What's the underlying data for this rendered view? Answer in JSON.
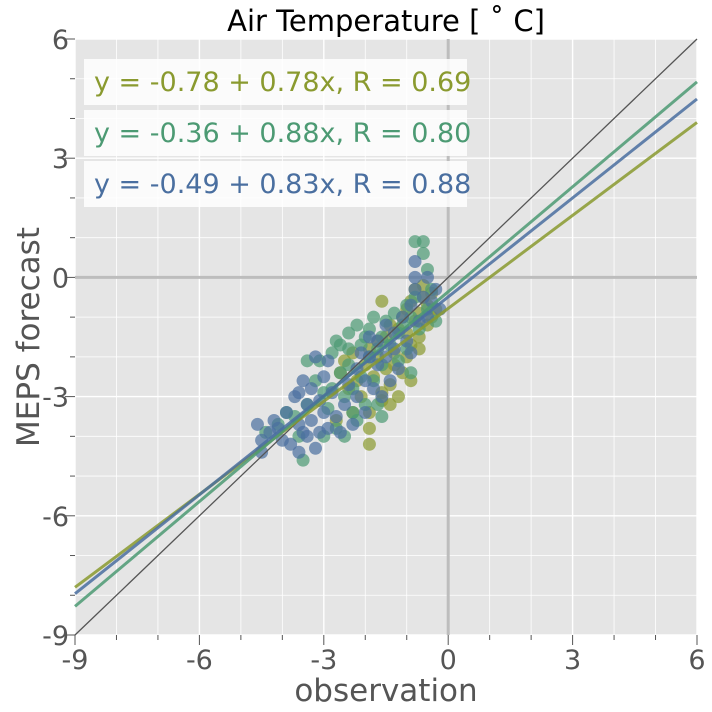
{
  "chart_data": {
    "type": "scatter",
    "title": "Air Temperature [$^\\circ$C]",
    "title_display": "Air Temperature [ ˚ C]",
    "xlabel": "observation",
    "ylabel": "MEPS forecast",
    "xlim": [
      -9,
      6
    ],
    "ylim": [
      -9,
      6
    ],
    "x_ticks": [
      -9,
      -6,
      -3,
      0,
      3,
      6
    ],
    "y_ticks": [
      -9,
      -6,
      -3,
      0,
      3,
      6
    ],
    "x_tick_labels": [
      "-9",
      "-6",
      "-3",
      "0",
      "3",
      "6"
    ],
    "y_tick_labels": [
      "-9",
      "-6",
      "-3",
      "0",
      "3",
      "6"
    ],
    "minor_tick_step": 1,
    "grid": true,
    "background": "#e5e5e5",
    "identity_line_color": "#555555",
    "zero_line_color": "#bdbdbd",
    "legend_position": "top-left",
    "series": [
      {
        "color": "#8a9a2f",
        "fit_label": "y = -0.78 + 0.78x, R = 0.69",
        "intercept": -0.78,
        "slope": 0.78,
        "points": [
          [
            -2.6,
            -2.4
          ],
          [
            -2.5,
            -2.1
          ],
          [
            -2.4,
            -2.8
          ],
          [
            -2.3,
            -1.9
          ],
          [
            -2.2,
            -2.6
          ],
          [
            -2.1,
            -3.0
          ],
          [
            -2.0,
            -2.2
          ],
          [
            -1.9,
            -1.8
          ],
          [
            -1.9,
            -3.4
          ],
          [
            -1.8,
            -2.5
          ],
          [
            -1.7,
            -2.0
          ],
          [
            -1.7,
            -1.6
          ],
          [
            -1.6,
            -2.9
          ],
          [
            -1.6,
            -3.1
          ],
          [
            -1.5,
            -1.5
          ],
          [
            -1.5,
            -2.3
          ],
          [
            -1.4,
            -1.2
          ],
          [
            -1.4,
            -2.7
          ],
          [
            -1.3,
            -1.9
          ],
          [
            -1.3,
            -2.2
          ],
          [
            -1.2,
            -1.3
          ],
          [
            -1.2,
            -3.0
          ],
          [
            -1.1,
            -1.0
          ],
          [
            -1.1,
            -2.4
          ],
          [
            -1.0,
            -1.4
          ],
          [
            -1.0,
            -0.8
          ],
          [
            -0.9,
            -0.6
          ],
          [
            -0.9,
            -1.7
          ],
          [
            -0.9,
            -2.6
          ],
          [
            -0.8,
            -0.3
          ],
          [
            -0.8,
            -1.1
          ],
          [
            -0.7,
            -0.9
          ],
          [
            -0.7,
            -1.5
          ],
          [
            -0.6,
            -0.5
          ],
          [
            -0.6,
            -0.2
          ],
          [
            -0.5,
            -1.2
          ],
          [
            -0.5,
            -0.7
          ],
          [
            -0.4,
            -0.4
          ],
          [
            -0.4,
            -1.0
          ],
          [
            -1.9,
            -4.2
          ],
          [
            -1.9,
            -3.8
          ],
          [
            -1.6,
            -0.6
          ],
          [
            -0.3,
            -0.8
          ],
          [
            -2.3,
            -3.4
          ],
          [
            -1.4,
            -3.2
          ],
          [
            -0.7,
            -1.8
          ],
          [
            -1.0,
            -2.0
          ],
          [
            -2.7,
            -3.6
          ]
        ]
      },
      {
        "color": "#4c9a73",
        "fit_label": "y = -0.36 + 0.88x, R = 0.80",
        "intercept": -0.36,
        "slope": 0.88,
        "points": [
          [
            -4.4,
            -3.9
          ],
          [
            -4.1,
            -3.7
          ],
          [
            -3.9,
            -3.4
          ],
          [
            -3.7,
            -3.5
          ],
          [
            -3.6,
            -4.0
          ],
          [
            -3.5,
            -4.6
          ],
          [
            -3.4,
            -3.2
          ],
          [
            -3.2,
            -2.6
          ],
          [
            -3.1,
            -2.1
          ],
          [
            -3.0,
            -4.0
          ],
          [
            -2.9,
            -3.3
          ],
          [
            -2.8,
            -2.8
          ],
          [
            -2.8,
            -1.9
          ],
          [
            -2.7,
            -3.8
          ],
          [
            -2.6,
            -2.4
          ],
          [
            -2.6,
            -1.7
          ],
          [
            -2.5,
            -3.0
          ],
          [
            -2.5,
            -4.0
          ],
          [
            -2.4,
            -1.4
          ],
          [
            -2.4,
            -2.2
          ],
          [
            -2.3,
            -2.8
          ],
          [
            -2.2,
            -1.2
          ],
          [
            -2.2,
            -3.6
          ],
          [
            -2.1,
            -1.7
          ],
          [
            -2.1,
            -2.5
          ],
          [
            -2.0,
            -1.5
          ],
          [
            -2.0,
            -3.2
          ],
          [
            -1.9,
            -2.0
          ],
          [
            -1.9,
            -1.3
          ],
          [
            -1.8,
            -2.6
          ],
          [
            -1.8,
            -1.0
          ],
          [
            -1.7,
            -1.8
          ],
          [
            -1.7,
            -3.2
          ],
          [
            -1.6,
            -1.5
          ],
          [
            -1.6,
            -2.2
          ],
          [
            -1.5,
            -1.1
          ],
          [
            -1.4,
            -1.7
          ],
          [
            -1.3,
            -0.9
          ],
          [
            -1.2,
            -1.4
          ],
          [
            -1.2,
            -2.1
          ],
          [
            -1.1,
            -1.2
          ],
          [
            -1.0,
            -0.7
          ],
          [
            -1.0,
            -1.8
          ],
          [
            -0.9,
            -1.0
          ],
          [
            -0.8,
            -0.5
          ],
          [
            -0.8,
            0.9
          ],
          [
            -0.7,
            -1.3
          ],
          [
            -0.6,
            0.9
          ],
          [
            -0.6,
            0.6
          ],
          [
            -0.5,
            0.2
          ],
          [
            -0.5,
            -0.8
          ],
          [
            -0.4,
            -0.3
          ],
          [
            -0.3,
            -1.1
          ],
          [
            -3.4,
            -2.1
          ],
          [
            -2.7,
            -1.6
          ],
          [
            -2.3,
            -3.4
          ],
          [
            -1.6,
            -3.5
          ],
          [
            -0.9,
            -2.4
          ],
          [
            -3.0,
            -2.9
          ],
          [
            -2.4,
            -1.8
          ]
        ]
      },
      {
        "color": "#4a6fa0",
        "fit_label": "y = -0.49 + 0.83x, R = 0.88",
        "intercept": -0.49,
        "slope": 0.83,
        "points": [
          [
            -4.6,
            -3.7
          ],
          [
            -4.5,
            -4.1
          ],
          [
            -4.5,
            -4.4
          ],
          [
            -4.3,
            -3.9
          ],
          [
            -4.2,
            -3.6
          ],
          [
            -4.0,
            -4.1
          ],
          [
            -3.9,
            -3.4
          ],
          [
            -3.8,
            -4.2
          ],
          [
            -3.7,
            -3.0
          ],
          [
            -3.6,
            -3.7
          ],
          [
            -3.6,
            -4.4
          ],
          [
            -3.5,
            -3.9
          ],
          [
            -3.5,
            -2.6
          ],
          [
            -3.4,
            -3.2
          ],
          [
            -3.4,
            -4.0
          ],
          [
            -3.3,
            -2.8
          ],
          [
            -3.3,
            -3.6
          ],
          [
            -3.2,
            -4.3
          ],
          [
            -3.2,
            -2.0
          ],
          [
            -3.1,
            -3.1
          ],
          [
            -3.1,
            -3.9
          ],
          [
            -3.0,
            -2.5
          ],
          [
            -3.0,
            -3.4
          ],
          [
            -2.9,
            -2.1
          ],
          [
            -2.9,
            -3.8
          ],
          [
            -2.8,
            -2.9
          ],
          [
            -2.5,
            -3.2
          ],
          [
            -2.4,
            -2.7
          ],
          [
            -2.3,
            -3.7
          ],
          [
            -2.2,
            -2.3
          ],
          [
            -2.2,
            -3.0
          ],
          [
            -2.1,
            -1.9
          ],
          [
            -2.0,
            -2.6
          ],
          [
            -2.0,
            -3.4
          ],
          [
            -1.9,
            -2.0
          ],
          [
            -1.9,
            -1.5
          ],
          [
            -1.8,
            -2.8
          ],
          [
            -1.7,
            -2.2
          ],
          [
            -1.7,
            -1.6
          ],
          [
            -1.6,
            -3.0
          ],
          [
            -1.5,
            -2.0
          ],
          [
            -1.5,
            -1.2
          ],
          [
            -1.4,
            -2.6
          ],
          [
            -1.3,
            -1.4
          ],
          [
            -1.3,
            -1.8
          ],
          [
            -1.2,
            -2.3
          ],
          [
            -1.1,
            -1.0
          ],
          [
            -1.0,
            -1.6
          ],
          [
            -0.9,
            -0.7
          ],
          [
            -0.9,
            -1.9
          ],
          [
            -0.8,
            0.4
          ],
          [
            -0.8,
            -0.3
          ],
          [
            -0.7,
            -1.1
          ],
          [
            -0.6,
            -0.5
          ],
          [
            -0.5,
            0.0
          ],
          [
            -0.5,
            -1.0
          ],
          [
            -0.4,
            -0.6
          ],
          [
            -0.3,
            -0.3
          ],
          [
            -0.2,
            -0.8
          ],
          [
            -0.8,
            0.0
          ],
          [
            -2.7,
            -3.5
          ],
          [
            -3.6,
            -2.9
          ],
          [
            -2.6,
            -3.9
          ],
          [
            -4.1,
            -3.8
          ]
        ]
      }
    ]
  }
}
